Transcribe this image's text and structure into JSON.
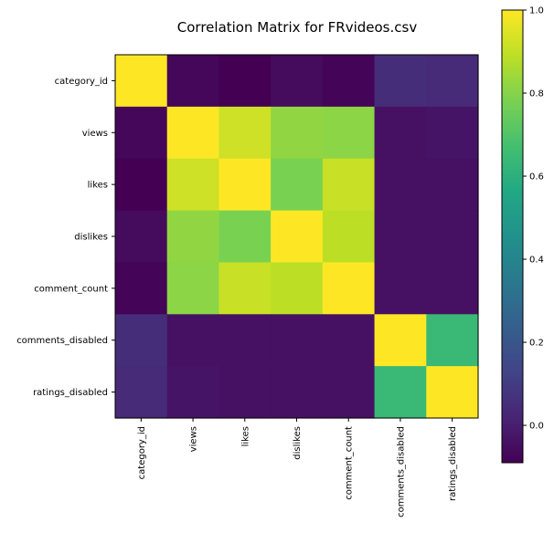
{
  "chart_data": {
    "type": "heatmap",
    "title": "Correlation Matrix for FRvideos.csv",
    "labels": [
      "category_id",
      "views",
      "likes",
      "dislikes",
      "comment_count",
      "comments_disabled",
      "ratings_disabled"
    ],
    "matrix": [
      [
        1.0,
        -0.07,
        -0.09,
        -0.06,
        -0.08,
        0.05,
        0.04
      ],
      [
        -0.07,
        1.0,
        0.92,
        0.82,
        0.81,
        -0.04,
        -0.03
      ],
      [
        -0.09,
        0.92,
        1.0,
        0.78,
        0.91,
        -0.04,
        -0.04
      ],
      [
        -0.06,
        0.82,
        0.78,
        1.0,
        0.89,
        -0.04,
        -0.04
      ],
      [
        -0.08,
        0.81,
        0.91,
        0.89,
        1.0,
        -0.04,
        -0.04
      ],
      [
        0.05,
        -0.04,
        -0.04,
        -0.04,
        -0.04,
        1.0,
        0.64
      ],
      [
        0.04,
        -0.03,
        -0.04,
        -0.04,
        -0.04,
        0.64,
        1.0
      ]
    ],
    "colormap": "viridis",
    "vmin": -0.09,
    "vmax": 1.0,
    "colorbar_ticks": [
      "0.0",
      "0.2",
      "0.4",
      "0.6",
      "0.8",
      "1.0"
    ],
    "colorbar_tick_values": [
      0.0,
      0.2,
      0.4,
      0.6,
      0.8,
      1.0
    ]
  }
}
